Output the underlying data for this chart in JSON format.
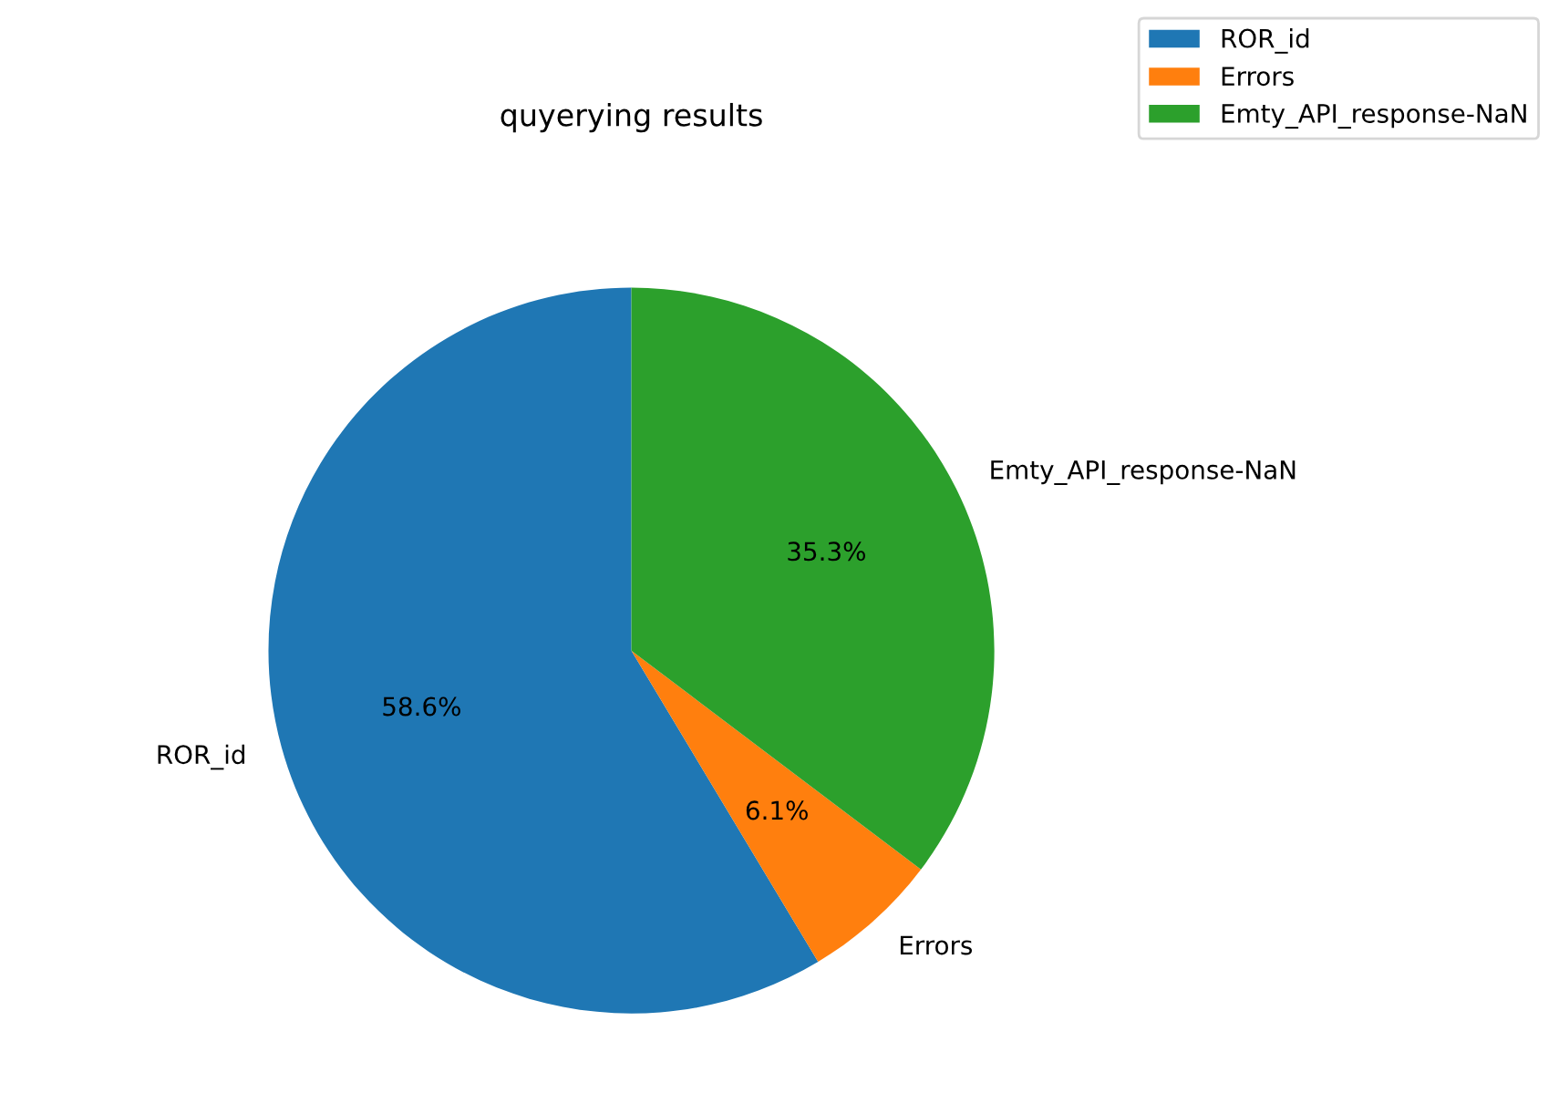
{
  "chart_data": {
    "type": "pie",
    "title": "quyerying results",
    "categories": [
      "ROR_id",
      "Errors",
      "Emty_API_response-NaN"
    ],
    "values": [
      58.6,
      6.1,
      35.3
    ],
    "value_labels": [
      "58.6%",
      "6.1%",
      "35.3%"
    ],
    "colors": [
      "#1f77b4",
      "#ff7f0e",
      "#2ca02c"
    ],
    "legend": "top right"
  }
}
